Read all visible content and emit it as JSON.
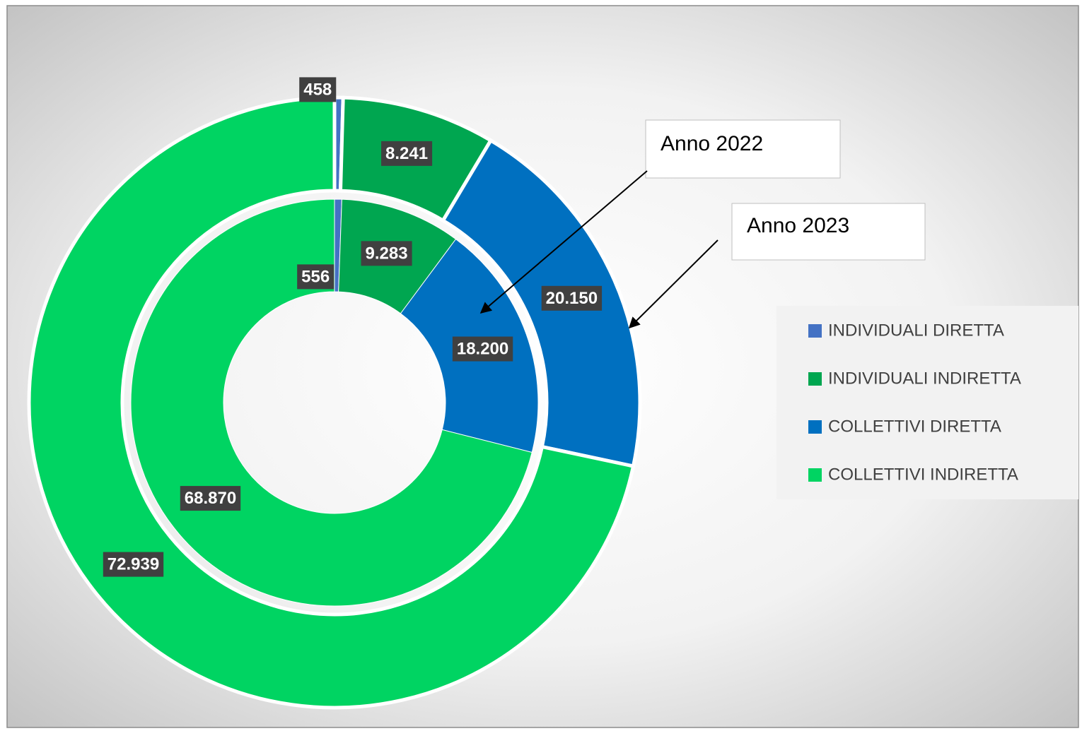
{
  "chart_data": {
    "type": "donut",
    "categories": [
      "INDIVIDUALI DIRETTA",
      "INDIVIDUALI INDIRETTA",
      "COLLETTIVI DIRETTA",
      "COLLETTIVI INDIRETTA"
    ],
    "colors": [
      "#4472c4",
      "#00a650",
      "#0070c0",
      "#00d462"
    ],
    "series": [
      {
        "name": "Anno 2022",
        "values": [
          556,
          9283,
          18200,
          68870
        ],
        "value_labels": [
          "556",
          "9.283",
          "18.200",
          "68.870"
        ]
      },
      {
        "name": "Anno 2023",
        "values": [
          458,
          8241,
          20150,
          72939
        ],
        "value_labels": [
          "458",
          "8.241",
          "20.150",
          "72.939"
        ]
      }
    ],
    "legend": "right"
  }
}
